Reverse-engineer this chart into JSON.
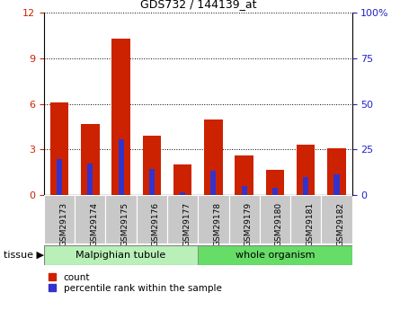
{
  "title": "GDS732 / 144139_at",
  "categories": [
    "GSM29173",
    "GSM29174",
    "GSM29175",
    "GSM29176",
    "GSM29177",
    "GSM29178",
    "GSM29179",
    "GSM29180",
    "GSM29181",
    "GSM29182"
  ],
  "count_values": [
    6.1,
    4.7,
    10.3,
    3.9,
    2.0,
    5.0,
    2.6,
    1.7,
    3.3,
    3.1
  ],
  "percentile_values": [
    20.0,
    17.5,
    30.8,
    14.2,
    1.7,
    13.3,
    5.0,
    4.2,
    10.0,
    11.7
  ],
  "count_color": "#cc2200",
  "percentile_color": "#3333cc",
  "ylim_left": [
    0,
    12
  ],
  "ylim_right": [
    0,
    100
  ],
  "yticks_left": [
    0,
    3,
    6,
    9,
    12
  ],
  "yticks_right": [
    0,
    25,
    50,
    75,
    100
  ],
  "group1_label": "Malpighian tubule",
  "group2_label": "whole organism",
  "group1_count": 5,
  "group2_count": 5,
  "group1_color": "#b8f0b8",
  "group2_color": "#66dd66",
  "tissue_label": "tissue",
  "legend_count": "count",
  "legend_percentile": "percentile rank within the sample",
  "bar_width": 0.6,
  "tick_bg_color": "#c8c8c8",
  "right_axis_color": "#2222cc",
  "left_axis_color": "#cc2200",
  "grid_color": "#000000",
  "scale_factor": 12,
  "figw": 4.45,
  "figh": 3.45
}
